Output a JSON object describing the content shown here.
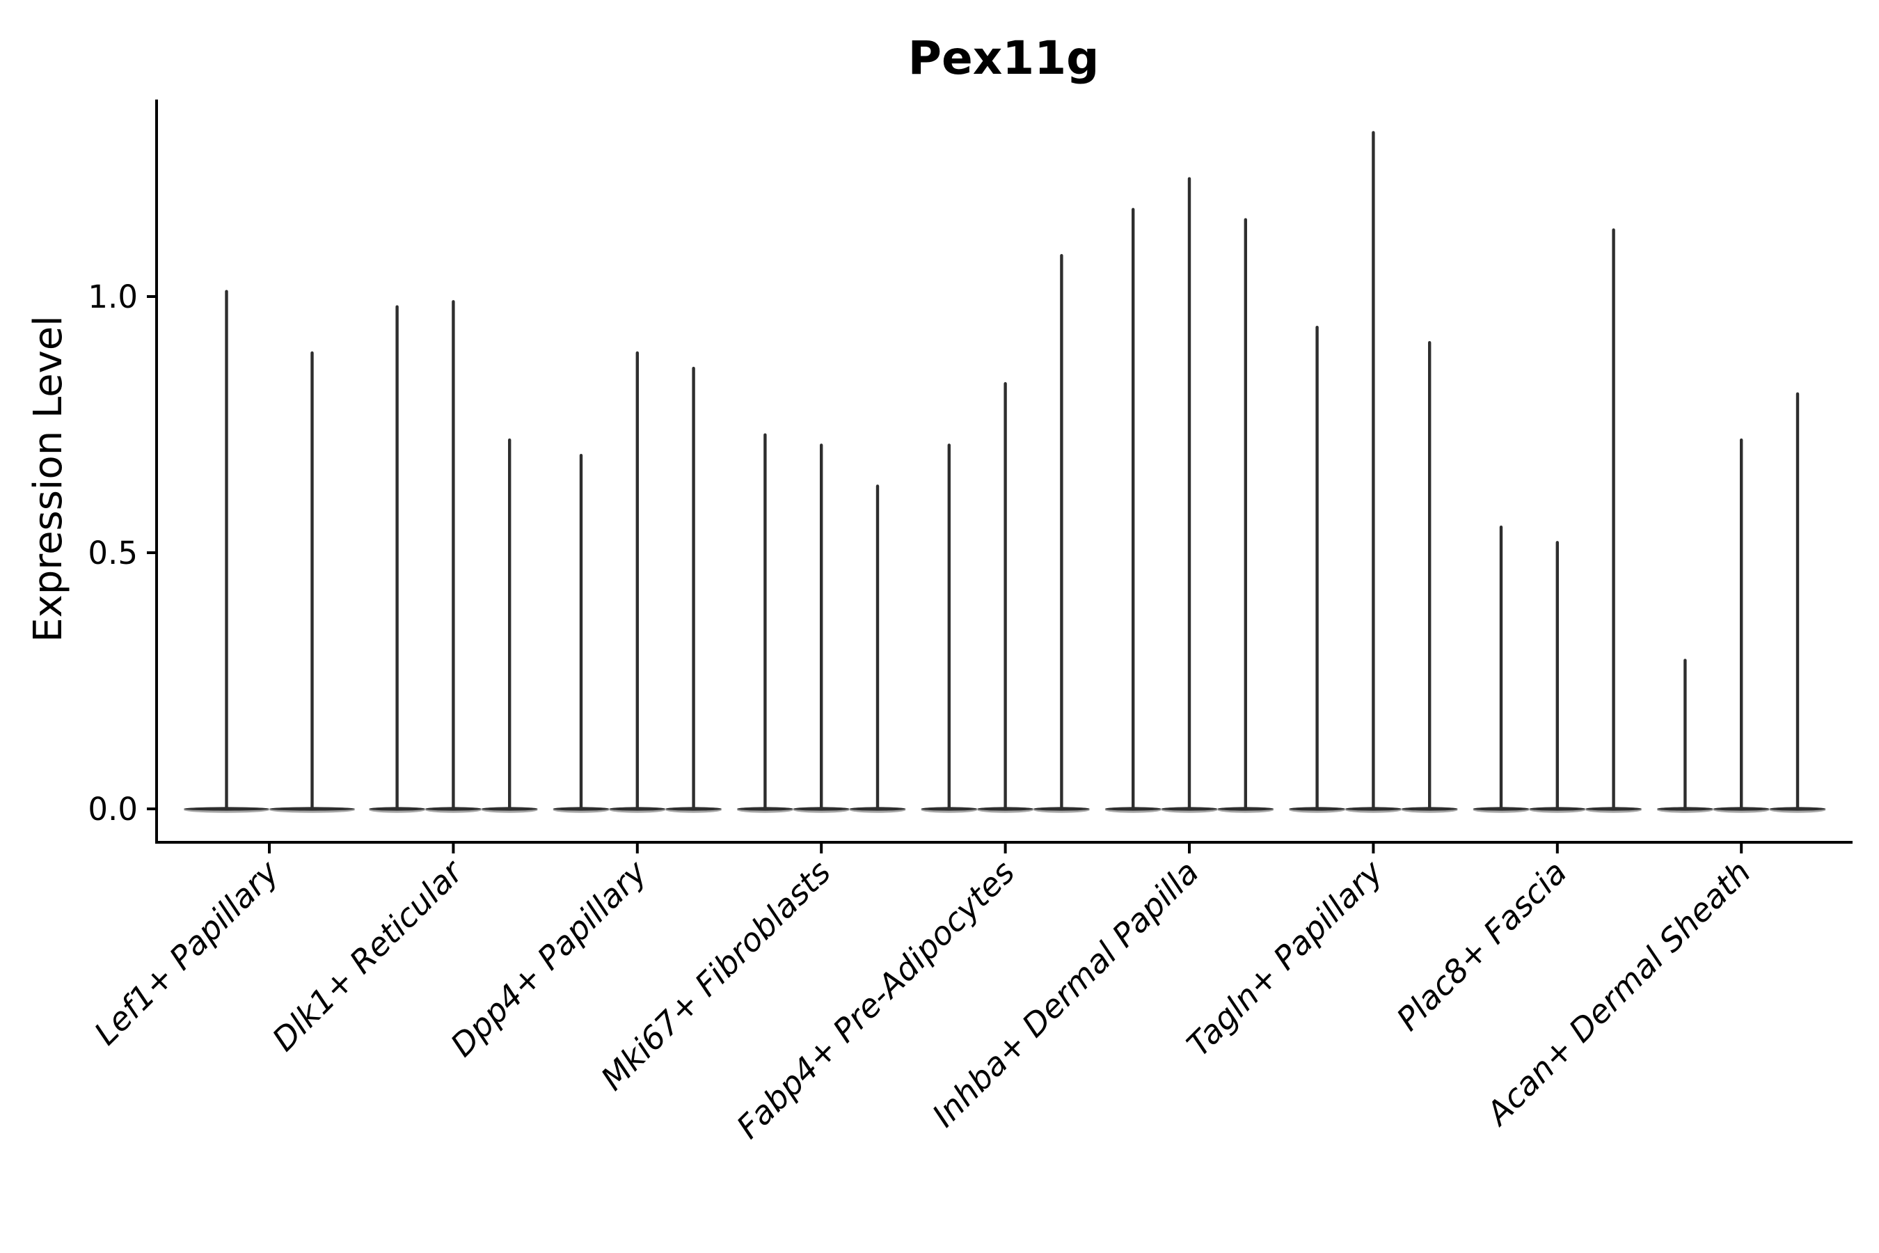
{
  "figure": {
    "background": "#ffffff"
  },
  "chart_data": {
    "type": "violin",
    "title": "Pex11g",
    "ylabel": "Expression Level",
    "xlabel": "",
    "categories": [
      "Lef1+ Papillary",
      "Dlk1+ Reticular",
      "Dpp4+ Papillary",
      "Mki67+ Fibroblasts",
      "Fabp4+ Pre-Adipocytes",
      "Inhba+ Dermal Papilla",
      "Tagln+ Papillary",
      "Plac8+ Fascia",
      "Acan+ Dermal Sheath"
    ],
    "series": [
      {
        "category": "Lef1+ Papillary",
        "peak_values": [
          1.01,
          0.89
        ]
      },
      {
        "category": "Dlk1+ Reticular",
        "peak_values": [
          0.98,
          0.99,
          0.72
        ]
      },
      {
        "category": "Dpp4+ Papillary",
        "peak_values": [
          0.69,
          0.89,
          0.86
        ]
      },
      {
        "category": "Mki67+ Fibroblasts",
        "peak_values": [
          0.73,
          0.71,
          0.63
        ]
      },
      {
        "category": "Fabp4+ Pre-Adipocytes",
        "peak_values": [
          0.71,
          0.83,
          1.08
        ]
      },
      {
        "category": "Inhba+ Dermal Papilla",
        "peak_values": [
          1.17,
          1.23,
          1.15
        ]
      },
      {
        "category": "Tagln+ Papillary",
        "peak_values": [
          0.94,
          1.32,
          0.91
        ]
      },
      {
        "category": "Plac8+ Fascia",
        "peak_values": [
          0.55,
          0.52,
          1.13
        ]
      },
      {
        "category": "Acan+ Dermal Sheath",
        "peak_values": [
          0.29,
          0.72,
          0.81
        ]
      }
    ],
    "ytick_labels": [
      "0.0",
      "0.5",
      "1.0"
    ],
    "ytick_values": [
      0.0,
      0.5,
      1.0
    ],
    "ylim": [
      -0.07,
      1.38
    ],
    "grid": false,
    "legend": "none",
    "xtick_rotation": 45,
    "violin_style": "expression mass concentrated at 0 (flat wide base) with a thin spike up to the peak value",
    "colors": {
      "violin": "#2e2e2e",
      "halo": "#a6a6a6",
      "axis": "#000000"
    }
  }
}
